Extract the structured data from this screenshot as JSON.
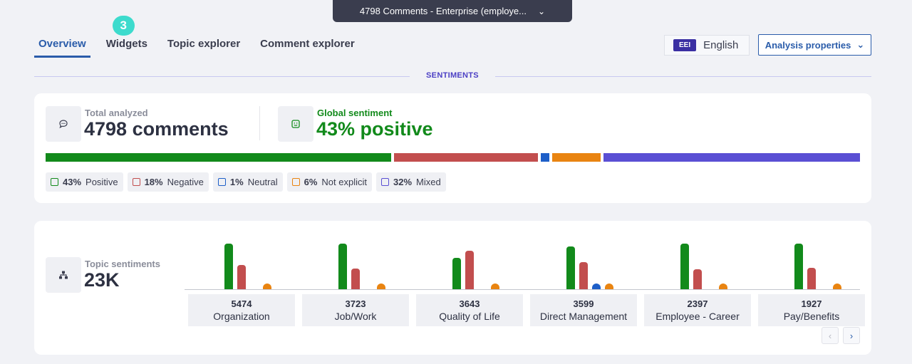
{
  "dataset": {
    "label": "4798 Comments - Enterprise (employe...",
    "chevron": "chevron-down-icon"
  },
  "tabs": [
    {
      "label": "Overview",
      "active": true
    },
    {
      "label": "Widgets",
      "badge": "3"
    },
    {
      "label": "Topic explorer"
    },
    {
      "label": "Comment explorer"
    }
  ],
  "language": {
    "code": "EEI",
    "label": "English"
  },
  "analysis_properties": {
    "label": "Analysis properties",
    "icon": "chevron-down-icon"
  },
  "section": {
    "title": "SENTIMENTS"
  },
  "summary": {
    "total_label": "Total analyzed",
    "total_value": "4798 comments",
    "global_label": "Global sentiment",
    "global_value": "43% positive",
    "colors": {
      "positive": "#128a1b",
      "negative": "#c24e4e",
      "neutral": "#1e5fc8",
      "not_explicit": "#e98411",
      "mixed": "#5a4fd4"
    },
    "distribution": [
      {
        "key": "positive",
        "pct": "43%",
        "label": "Positive",
        "value": 43
      },
      {
        "key": "negative",
        "pct": "18%",
        "label": "Negative",
        "value": 18
      },
      {
        "key": "neutral",
        "pct": "1%",
        "label": "Neutral",
        "value": 1
      },
      {
        "key": "not_explicit",
        "pct": "6%",
        "label": "Not explicit",
        "value": 6
      },
      {
        "key": "mixed",
        "pct": "32%",
        "label": "Mixed",
        "value": 32
      }
    ]
  },
  "topics": {
    "label": "Topic sentiments",
    "value": "23K",
    "items": [
      {
        "count": "5474",
        "name": "Organization",
        "positive": 1.0,
        "negative": 0.53,
        "neutral": 0,
        "not_explicit": 0.12
      },
      {
        "count": "3723",
        "name": "Job/Work",
        "positive": 1.0,
        "negative": 0.45,
        "neutral": 0,
        "not_explicit": 0.12
      },
      {
        "count": "3643",
        "name": "Quality of Life",
        "positive": 0.68,
        "negative": 0.84,
        "neutral": 0,
        "not_explicit": 0.12
      },
      {
        "count": "3599",
        "name": "Direct Management",
        "positive": 0.94,
        "negative": 0.6,
        "neutral": 0.12,
        "not_explicit": 0.12
      },
      {
        "count": "2397",
        "name": "Employee - Career",
        "positive": 1.0,
        "negative": 0.44,
        "neutral": 0,
        "not_explicit": 0.12
      },
      {
        "count": "1927",
        "name": "Pay/Benefits",
        "positive": 1.0,
        "negative": 0.47,
        "neutral": 0,
        "not_explicit": 0.12
      }
    ]
  },
  "pager": {
    "prev": "‹",
    "next": "›"
  }
}
